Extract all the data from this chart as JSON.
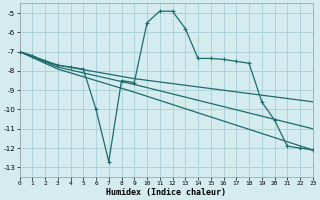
{
  "xlabel": "Humidex (Indice chaleur)",
  "background_color": "#d4ecf0",
  "grid_color": "#aacdd5",
  "line_color": "#1e6b6b",
  "xlim": [
    0,
    23
  ],
  "ylim": [
    -13.5,
    -4.5
  ],
  "yticks": [
    -13,
    -12,
    -11,
    -10,
    -9,
    -8,
    -7,
    -6,
    -5
  ],
  "xticks": [
    0,
    1,
    2,
    3,
    4,
    5,
    6,
    7,
    8,
    9,
    10,
    11,
    12,
    13,
    14,
    15,
    16,
    17,
    18,
    19,
    20,
    21,
    22,
    23
  ],
  "main_x": [
    0,
    1,
    2,
    3,
    4,
    5,
    6,
    7,
    8,
    9,
    10,
    11,
    12,
    13,
    14,
    15,
    16,
    17,
    18,
    19,
    20,
    21,
    22,
    23
  ],
  "main_y": [
    -7.0,
    -7.2,
    -7.5,
    -7.7,
    -7.8,
    -7.9,
    -10.0,
    -12.7,
    -8.5,
    -8.6,
    -5.5,
    -4.9,
    -4.9,
    -5.8,
    -7.35,
    -7.35,
    -7.4,
    -7.5,
    -7.6,
    -9.6,
    -10.55,
    -11.9,
    -12.0,
    -12.1
  ],
  "trend_lines": [
    {
      "x": [
        0,
        3,
        9,
        23
      ],
      "y": [
        -7.0,
        -7.7,
        -8.4,
        -9.6
      ]
    },
    {
      "x": [
        0,
        3,
        9,
        23
      ],
      "y": [
        -7.0,
        -7.8,
        -8.7,
        -11.0
      ]
    },
    {
      "x": [
        0,
        3,
        9,
        23
      ],
      "y": [
        -7.0,
        -7.9,
        -9.1,
        -12.1
      ]
    }
  ]
}
